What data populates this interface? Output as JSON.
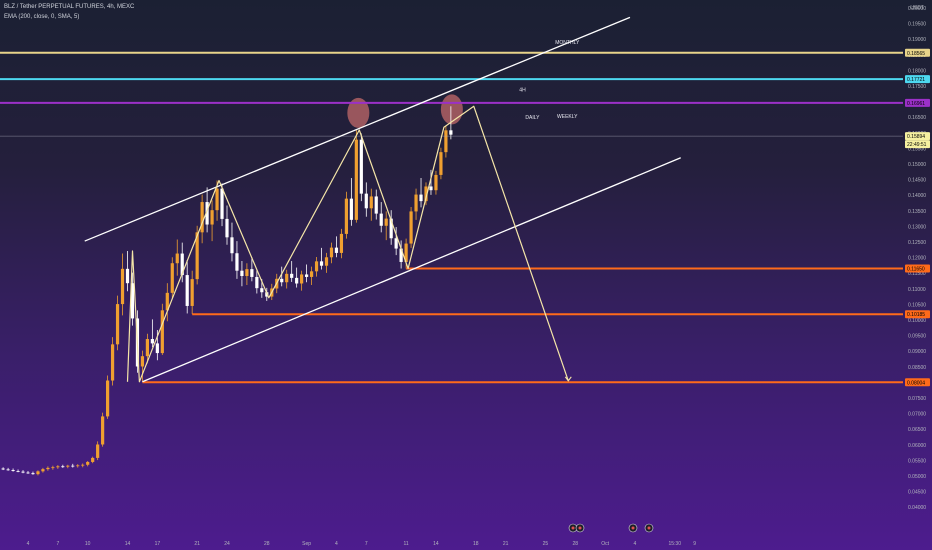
{
  "header": {
    "symbol_line": "BLZ / Tether PERPETUAL FUTURES, 4h, MEXC",
    "indicator_line": "EMA (200, close, 0, SMA, 5)"
  },
  "currency": "USDT",
  "colors": {
    "candle_up": "#f0a030",
    "candle_down": "#ffffff",
    "trend": "#f5e6a8",
    "channel": "#ffffff",
    "orange_level": "#ff6a1a",
    "purple_level": "#9b30c8",
    "cyan_level": "#4dd8f0",
    "yellow_level": "#e8d48a",
    "circle": "#c26a6a"
  },
  "chart_data": {
    "type": "candlestick",
    "ylim": [
      0.04,
      0.2
    ],
    "y_ticks": [
      "0.20000",
      "0.19500",
      "0.19000",
      "0.18500",
      "0.18000",
      "0.17500",
      "0.17000",
      "0.16500",
      "0.16000",
      "0.15500",
      "0.15000",
      "0.14500",
      "0.14000",
      "0.13500",
      "0.13000",
      "0.12500",
      "0.12000",
      "0.11500",
      "0.11000",
      "0.10500",
      "0.10000",
      "0.09500",
      "0.09000",
      "0.08500",
      "0.08000",
      "0.07500",
      "0.07000",
      "0.06500",
      "0.06000",
      "0.05500",
      "0.05000",
      "0.04500",
      "0.04000"
    ],
    "x_ticks": [
      "4",
      "7",
      "10",
      "14",
      "17",
      "21",
      "24",
      "28",
      "Sep",
      "4",
      "7",
      "11",
      "14",
      "18",
      "21",
      "25",
      "28",
      "Oct",
      "4",
      "15:30",
      "9"
    ],
    "x_tick_days": [
      4,
      7,
      10,
      14,
      17,
      21,
      24,
      28,
      32,
      35,
      38,
      42,
      45,
      49,
      52,
      56,
      59,
      62,
      65,
      69,
      71
    ],
    "price_labels": [
      {
        "value": 0.18565,
        "text": "0.18565",
        "color": "#e8d48a"
      },
      {
        "value": 0.17721,
        "text": "0.17721",
        "color": "#4dd8f0"
      },
      {
        "value": 0.16961,
        "text": "0.16961",
        "color": "#9b30c8"
      },
      {
        "value": 0.15894,
        "text": "0.15894",
        "color": "#f5f0a0"
      },
      {
        "value": 0.1165,
        "text": "0.11650",
        "color": "#ff6a1a"
      },
      {
        "value": 0.10185,
        "text": "0.10185",
        "color": "#ff6a1a"
      },
      {
        "value": 0.08004,
        "text": "0.08004",
        "color": "#ff6a1a"
      }
    ],
    "countdown": "22:49:51",
    "levels": [
      {
        "value": 0.18565,
        "color": "#e8d48a",
        "from_day": 0
      },
      {
        "value": 0.17721,
        "color": "#4dd8f0",
        "from_day": 0
      },
      {
        "value": 0.16961,
        "color": "#9b30c8",
        "from_day": 0
      },
      {
        "value": 0.1165,
        "color": "#ff6a1a",
        "from_day": 42
      },
      {
        "value": 0.10185,
        "color": "#ff6a1a",
        "from_day": 20.5
      },
      {
        "value": 0.08004,
        "color": "#ff6a1a",
        "from_day": 15.5
      }
    ],
    "annotations": [
      {
        "text": "MONTHLY",
        "day": 58.2,
        "value": 0.1885
      },
      {
        "text": "4H",
        "day": 53.7,
        "value": 0.1733
      },
      {
        "text": "DAILY",
        "day": 54.7,
        "value": 0.1645
      },
      {
        "text": "WEEKLY",
        "day": 58.2,
        "value": 0.1648
      }
    ],
    "channel_lines": [
      {
        "from": {
          "day": 9.7,
          "value": 0.1253
        },
        "to": {
          "day": 64.5,
          "value": 0.197
        }
      },
      {
        "from": {
          "day": 15.5,
          "value": 0.0802
        },
        "to": {
          "day": 69.6,
          "value": 0.152
        }
      }
    ],
    "zigzag": [
      {
        "day": 14,
        "value": 0.0802
      },
      {
        "day": 14.5,
        "value": 0.1221
      },
      {
        "day": 15.2,
        "value": 0.0802
      },
      {
        "day": 23.2,
        "value": 0.1447
      },
      {
        "day": 28.2,
        "value": 0.1071
      },
      {
        "day": 37.3,
        "value": 0.1609
      },
      {
        "day": 42.2,
        "value": 0.1165
      },
      {
        "day": 45.8,
        "value": 0.1618
      },
      {
        "day": 48.8,
        "value": 0.1685
      },
      {
        "day": 58.3,
        "value": 0.0805
      }
    ],
    "circles": [
      {
        "day": 37.2,
        "value": 0.1664
      },
      {
        "day": 46.6,
        "value": 0.1675
      }
    ],
    "candles": [
      {
        "day": 0.0,
        "o": 0.0531,
        "h": 0.0536,
        "l": 0.0528,
        "c": 0.0529
      },
      {
        "day": 0.5,
        "o": 0.0529,
        "h": 0.0533,
        "l": 0.0524,
        "c": 0.0526
      },
      {
        "day": 1.0,
        "o": 0.0526,
        "h": 0.0531,
        "l": 0.0522,
        "c": 0.0524
      },
      {
        "day": 1.5,
        "o": 0.0524,
        "h": 0.0528,
        "l": 0.0519,
        "c": 0.0521
      },
      {
        "day": 2.0,
        "o": 0.0521,
        "h": 0.0526,
        "l": 0.0517,
        "c": 0.0519
      },
      {
        "day": 2.5,
        "o": 0.0519,
        "h": 0.0524,
        "l": 0.0514,
        "c": 0.0516
      },
      {
        "day": 3.0,
        "o": 0.0516,
        "h": 0.0521,
        "l": 0.0512,
        "c": 0.0514
      },
      {
        "day": 3.5,
        "o": 0.0514,
        "h": 0.0519,
        "l": 0.0509,
        "c": 0.0511
      },
      {
        "day": 4.0,
        "o": 0.0511,
        "h": 0.0516,
        "l": 0.0507,
        "c": 0.0509
      },
      {
        "day": 4.5,
        "o": 0.0509,
        "h": 0.0514,
        "l": 0.0504,
        "c": 0.0506
      },
      {
        "day": 5.0,
        "o": 0.0506,
        "h": 0.0518,
        "l": 0.0502,
        "c": 0.0515
      },
      {
        "day": 5.5,
        "o": 0.0515,
        "h": 0.0526,
        "l": 0.0511,
        "c": 0.0522
      },
      {
        "day": 6.0,
        "o": 0.0522,
        "h": 0.0531,
        "l": 0.0517,
        "c": 0.0526
      },
      {
        "day": 6.5,
        "o": 0.0526,
        "h": 0.0533,
        "l": 0.052,
        "c": 0.0528
      },
      {
        "day": 7.0,
        "o": 0.0528,
        "h": 0.0535,
        "l": 0.0523,
        "c": 0.0531
      },
      {
        "day": 7.5,
        "o": 0.0531,
        "h": 0.0536,
        "l": 0.0526,
        "c": 0.053
      },
      {
        "day": 8.0,
        "o": 0.053,
        "h": 0.0536,
        "l": 0.0525,
        "c": 0.0533
      },
      {
        "day": 8.5,
        "o": 0.0533,
        "h": 0.0539,
        "l": 0.0527,
        "c": 0.0532
      },
      {
        "day": 9.0,
        "o": 0.0532,
        "h": 0.0538,
        "l": 0.0527,
        "c": 0.0534
      },
      {
        "day": 9.5,
        "o": 0.0534,
        "h": 0.054,
        "l": 0.0528,
        "c": 0.0536
      },
      {
        "day": 10.0,
        "o": 0.0536,
        "h": 0.0548,
        "l": 0.0531,
        "c": 0.0545
      },
      {
        "day": 10.5,
        "o": 0.0545,
        "h": 0.0562,
        "l": 0.0541,
        "c": 0.0558
      },
      {
        "day": 11.0,
        "o": 0.0558,
        "h": 0.0611,
        "l": 0.0551,
        "c": 0.0601
      },
      {
        "day": 11.5,
        "o": 0.0601,
        "h": 0.0703,
        "l": 0.0594,
        "c": 0.0691
      },
      {
        "day": 12.0,
        "o": 0.0691,
        "h": 0.0822,
        "l": 0.0683,
        "c": 0.0806
      },
      {
        "day": 12.5,
        "o": 0.0806,
        "h": 0.0945,
        "l": 0.079,
        "c": 0.0922
      },
      {
        "day": 13.0,
        "o": 0.0922,
        "h": 0.1078,
        "l": 0.0903,
        "c": 0.1051
      },
      {
        "day": 13.5,
        "o": 0.1051,
        "h": 0.1213,
        "l": 0.1015,
        "c": 0.1164
      },
      {
        "day": 14.0,
        "o": 0.1164,
        "h": 0.1221,
        "l": 0.1092,
        "c": 0.1118
      },
      {
        "day": 14.5,
        "o": 0.1118,
        "h": 0.1152,
        "l": 0.0982,
        "c": 0.1005
      },
      {
        "day": 15.0,
        "o": 0.1005,
        "h": 0.1031,
        "l": 0.0831,
        "c": 0.0851
      },
      {
        "day": 15.5,
        "o": 0.0851,
        "h": 0.0902,
        "l": 0.0802,
        "c": 0.0884
      },
      {
        "day": 16.0,
        "o": 0.0884,
        "h": 0.0956,
        "l": 0.0861,
        "c": 0.0939
      },
      {
        "day": 16.5,
        "o": 0.0939,
        "h": 0.1002,
        "l": 0.0913,
        "c": 0.0925
      },
      {
        "day": 17.0,
        "o": 0.0925,
        "h": 0.0968,
        "l": 0.0871,
        "c": 0.0894
      },
      {
        "day": 17.5,
        "o": 0.0894,
        "h": 0.1052,
        "l": 0.0888,
        "c": 0.1031
      },
      {
        "day": 18.0,
        "o": 0.1031,
        "h": 0.1118,
        "l": 0.0996,
        "c": 0.1087
      },
      {
        "day": 18.5,
        "o": 0.1087,
        "h": 0.1201,
        "l": 0.1071,
        "c": 0.1182
      },
      {
        "day": 19.0,
        "o": 0.1182,
        "h": 0.1258,
        "l": 0.1142,
        "c": 0.1213
      },
      {
        "day": 19.5,
        "o": 0.1213,
        "h": 0.1248,
        "l": 0.1121,
        "c": 0.1144
      },
      {
        "day": 20.0,
        "o": 0.1144,
        "h": 0.1192,
        "l": 0.1021,
        "c": 0.1045
      },
      {
        "day": 20.5,
        "o": 0.1045,
        "h": 0.1158,
        "l": 0.1019,
        "c": 0.1131
      },
      {
        "day": 21.0,
        "o": 0.1131,
        "h": 0.1302,
        "l": 0.1114,
        "c": 0.1281
      },
      {
        "day": 21.5,
        "o": 0.1281,
        "h": 0.1402,
        "l": 0.1246,
        "c": 0.1378
      },
      {
        "day": 22.0,
        "o": 0.1378,
        "h": 0.1425,
        "l": 0.1281,
        "c": 0.1306
      },
      {
        "day": 22.5,
        "o": 0.1306,
        "h": 0.1384,
        "l": 0.1253,
        "c": 0.1352
      },
      {
        "day": 23.0,
        "o": 0.1352,
        "h": 0.1447,
        "l": 0.1318,
        "c": 0.1421
      },
      {
        "day": 23.5,
        "o": 0.1421,
        "h": 0.1438,
        "l": 0.1301,
        "c": 0.1324
      },
      {
        "day": 24.0,
        "o": 0.1324,
        "h": 0.1367,
        "l": 0.1241,
        "c": 0.1265
      },
      {
        "day": 24.5,
        "o": 0.1265,
        "h": 0.1312,
        "l": 0.1188,
        "c": 0.1214
      },
      {
        "day": 25.0,
        "o": 0.1214,
        "h": 0.1253,
        "l": 0.1132,
        "c": 0.1158
      },
      {
        "day": 25.5,
        "o": 0.1158,
        "h": 0.1189,
        "l": 0.1108,
        "c": 0.1141
      },
      {
        "day": 26.0,
        "o": 0.1141,
        "h": 0.1182,
        "l": 0.1112,
        "c": 0.1163
      },
      {
        "day": 26.5,
        "o": 0.1163,
        "h": 0.1201,
        "l": 0.1124,
        "c": 0.1138
      },
      {
        "day": 27.0,
        "o": 0.1138,
        "h": 0.1162,
        "l": 0.1085,
        "c": 0.1102
      },
      {
        "day": 27.5,
        "o": 0.1102,
        "h": 0.1131,
        "l": 0.1071,
        "c": 0.1089
      },
      {
        "day": 28.0,
        "o": 0.1089,
        "h": 0.1103,
        "l": 0.1061,
        "c": 0.1075
      },
      {
        "day": 28.5,
        "o": 0.1075,
        "h": 0.1116,
        "l": 0.1064,
        "c": 0.1101
      },
      {
        "day": 29.0,
        "o": 0.1101,
        "h": 0.1148,
        "l": 0.1086,
        "c": 0.1132
      },
      {
        "day": 29.5,
        "o": 0.1132,
        "h": 0.1171,
        "l": 0.1108,
        "c": 0.1121
      },
      {
        "day": 30.0,
        "o": 0.1121,
        "h": 0.1161,
        "l": 0.1101,
        "c": 0.1148
      },
      {
        "day": 30.5,
        "o": 0.1148,
        "h": 0.1189,
        "l": 0.1122,
        "c": 0.1135
      },
      {
        "day": 31.0,
        "o": 0.1135,
        "h": 0.1168,
        "l": 0.1104,
        "c": 0.1117
      },
      {
        "day": 31.5,
        "o": 0.1117,
        "h": 0.1158,
        "l": 0.1094,
        "c": 0.1146
      },
      {
        "day": 32.0,
        "o": 0.1146,
        "h": 0.1178,
        "l": 0.1121,
        "c": 0.1138
      },
      {
        "day": 32.5,
        "o": 0.1138,
        "h": 0.1171,
        "l": 0.1112,
        "c": 0.1156
      },
      {
        "day": 33.0,
        "o": 0.1156,
        "h": 0.1202,
        "l": 0.1139,
        "c": 0.1188
      },
      {
        "day": 33.5,
        "o": 0.1188,
        "h": 0.1231,
        "l": 0.1162,
        "c": 0.1174
      },
      {
        "day": 34.0,
        "o": 0.1174,
        "h": 0.1215,
        "l": 0.1151,
        "c": 0.1201
      },
      {
        "day": 34.5,
        "o": 0.1201,
        "h": 0.1248,
        "l": 0.1182,
        "c": 0.1232
      },
      {
        "day": 35.0,
        "o": 0.1232,
        "h": 0.1268,
        "l": 0.1201,
        "c": 0.1215
      },
      {
        "day": 35.5,
        "o": 0.1215,
        "h": 0.1292,
        "l": 0.1198,
        "c": 0.1276
      },
      {
        "day": 36.0,
        "o": 0.1276,
        "h": 0.1411,
        "l": 0.1261,
        "c": 0.1389
      },
      {
        "day": 36.5,
        "o": 0.1389,
        "h": 0.1455,
        "l": 0.1302,
        "c": 0.1321
      },
      {
        "day": 37.0,
        "o": 0.1321,
        "h": 0.1609,
        "l": 0.1312,
        "c": 0.1578
      },
      {
        "day": 37.5,
        "o": 0.1578,
        "h": 0.1598,
        "l": 0.1381,
        "c": 0.1405
      },
      {
        "day": 38.0,
        "o": 0.1405,
        "h": 0.1441,
        "l": 0.1331,
        "c": 0.1358
      },
      {
        "day": 38.5,
        "o": 0.1358,
        "h": 0.1421,
        "l": 0.1318,
        "c": 0.1396
      },
      {
        "day": 39.0,
        "o": 0.1396,
        "h": 0.1418,
        "l": 0.1322,
        "c": 0.1341
      },
      {
        "day": 39.5,
        "o": 0.1341,
        "h": 0.1378,
        "l": 0.1281,
        "c": 0.1302
      },
      {
        "day": 40.0,
        "o": 0.1302,
        "h": 0.1348,
        "l": 0.1256,
        "c": 0.1325
      },
      {
        "day": 40.5,
        "o": 0.1325,
        "h": 0.1352,
        "l": 0.1241,
        "c": 0.1262
      },
      {
        "day": 41.0,
        "o": 0.1262,
        "h": 0.1298,
        "l": 0.1208,
        "c": 0.1229
      },
      {
        "day": 41.5,
        "o": 0.1229,
        "h": 0.1255,
        "l": 0.1165,
        "c": 0.1186
      },
      {
        "day": 42.0,
        "o": 0.1186,
        "h": 0.1261,
        "l": 0.1165,
        "c": 0.1245
      },
      {
        "day": 42.5,
        "o": 0.1245,
        "h": 0.1362,
        "l": 0.1231,
        "c": 0.1348
      },
      {
        "day": 43.0,
        "o": 0.1348,
        "h": 0.1421,
        "l": 0.1321,
        "c": 0.1402
      },
      {
        "day": 43.5,
        "o": 0.1402,
        "h": 0.1455,
        "l": 0.1361,
        "c": 0.1381
      },
      {
        "day": 44.0,
        "o": 0.1381,
        "h": 0.1441,
        "l": 0.1368,
        "c": 0.1428
      },
      {
        "day": 44.5,
        "o": 0.1428,
        "h": 0.1481,
        "l": 0.1401,
        "c": 0.1416
      },
      {
        "day": 45.0,
        "o": 0.1416,
        "h": 0.1478,
        "l": 0.1402,
        "c": 0.1465
      },
      {
        "day": 45.5,
        "o": 0.1465,
        "h": 0.1552,
        "l": 0.1451,
        "c": 0.1538
      },
      {
        "day": 46.0,
        "o": 0.1538,
        "h": 0.1622,
        "l": 0.1521,
        "c": 0.1608
      },
      {
        "day": 46.5,
        "o": 0.1608,
        "h": 0.1685,
        "l": 0.1579,
        "c": 0.1594
      }
    ]
  }
}
